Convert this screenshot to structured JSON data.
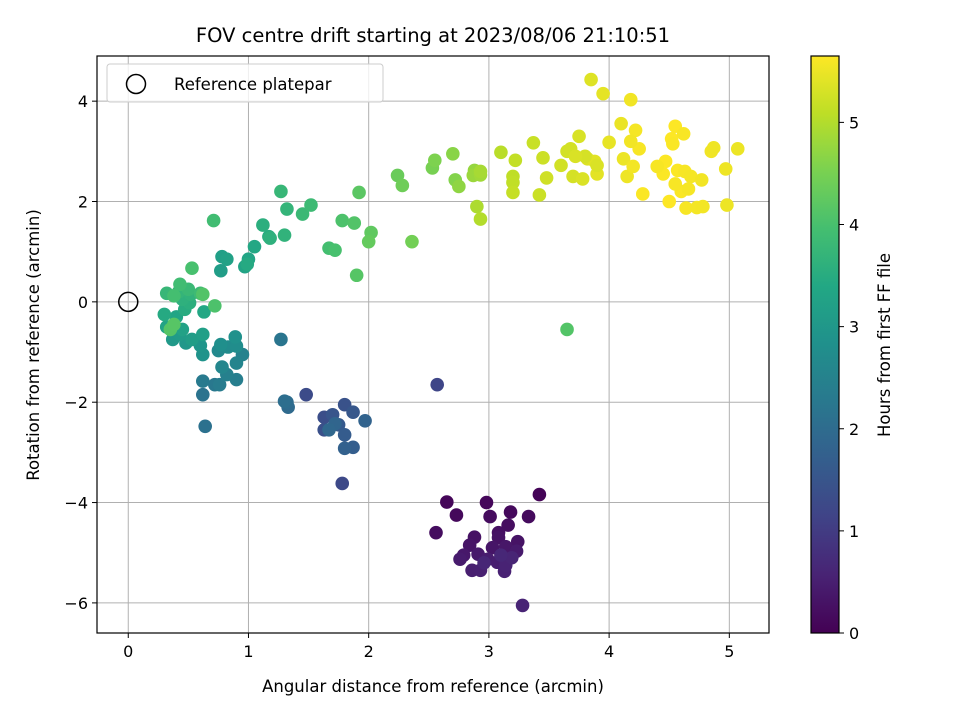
{
  "chart_data": {
    "type": "scatter",
    "title": "FOV centre drift starting at 2023/08/06 21:10:51",
    "xlabel": "Angular distance from reference (arcmin)",
    "ylabel": "Rotation from reference (arcmin)",
    "xlim": [
      -0.26,
      5.33
    ],
    "ylim": [
      -6.6,
      4.9
    ],
    "xticks": [
      0,
      1,
      2,
      3,
      4,
      5
    ],
    "yticks": [
      -6,
      -4,
      -2,
      0,
      2,
      4
    ],
    "xtick_labels": [
      "0",
      "1",
      "2",
      "3",
      "4",
      "5"
    ],
    "ytick_labels": [
      "−6",
      "−4",
      "−2",
      "0",
      "2",
      "4"
    ],
    "grid": true,
    "legend": {
      "placement": "upper-left",
      "entries": [
        "Reference platepar"
      ]
    },
    "reference_point": {
      "x": 0,
      "y": 0
    },
    "colorbar": {
      "label": "Hours from first FF file",
      "colormap": "viridis",
      "range": [
        0,
        5.65
      ],
      "ticks": [
        0,
        1,
        2,
        3,
        4,
        5
      ],
      "tick_labels": [
        "0",
        "1",
        "2",
        "3",
        "4",
        "5"
      ]
    },
    "points": [
      [
        3.42,
        -3.84,
        0.05
      ],
      [
        2.65,
        -3.99,
        0.08
      ],
      [
        2.98,
        -4.0,
        0.1
      ],
      [
        2.73,
        -4.25,
        0.12
      ],
      [
        3.18,
        -4.19,
        0.14
      ],
      [
        3.33,
        -4.28,
        0.16
      ],
      [
        3.01,
        -4.28,
        0.18
      ],
      [
        2.56,
        -4.6,
        0.2
      ],
      [
        3.16,
        -4.45,
        0.22
      ],
      [
        3.08,
        -4.6,
        0.24
      ],
      [
        2.88,
        -4.69,
        0.26
      ],
      [
        3.08,
        -4.7,
        0.28
      ],
      [
        3.24,
        -4.78,
        0.3
      ],
      [
        2.84,
        -4.85,
        0.32
      ],
      [
        3.03,
        -4.9,
        0.34
      ],
      [
        3.14,
        -4.88,
        0.36
      ],
      [
        2.79,
        -5.05,
        0.38
      ],
      [
        2.91,
        -5.03,
        0.4
      ],
      [
        3.23,
        -4.97,
        0.42
      ],
      [
        2.76,
        -5.13,
        0.44
      ],
      [
        2.99,
        -5.13,
        0.46
      ],
      [
        3.07,
        -5.19,
        0.48
      ],
      [
        2.86,
        -5.35,
        0.5
      ],
      [
        2.93,
        -5.35,
        0.52
      ],
      [
        3.13,
        -5.37,
        0.54
      ],
      [
        3.14,
        -5.25,
        0.56
      ],
      [
        3.28,
        -6.05,
        0.58
      ],
      [
        3.19,
        -5.1,
        0.6
      ],
      [
        2.96,
        -5.2,
        0.62
      ],
      [
        3.1,
        -5.05,
        0.64
      ],
      [
        2.57,
        -1.65,
        1.2
      ],
      [
        1.78,
        -3.62,
        1.25
      ],
      [
        1.48,
        -1.85,
        1.3
      ],
      [
        1.63,
        -2.3,
        1.35
      ],
      [
        1.63,
        -2.55,
        1.4
      ],
      [
        1.8,
        -2.05,
        1.45
      ],
      [
        1.7,
        -2.25,
        1.5
      ],
      [
        1.87,
        -2.2,
        1.55
      ],
      [
        1.75,
        -2.45,
        1.6
      ],
      [
        1.8,
        -2.65,
        1.65
      ],
      [
        1.87,
        -2.9,
        1.7
      ],
      [
        1.8,
        -2.92,
        1.75
      ],
      [
        1.97,
        -2.37,
        1.8
      ],
      [
        1.72,
        -2.43,
        1.85
      ],
      [
        1.67,
        -2.55,
        1.9
      ],
      [
        1.33,
        -2.1,
        1.95
      ],
      [
        1.32,
        -2.0,
        2.0
      ],
      [
        1.3,
        -1.98,
        2.05
      ],
      [
        0.64,
        -2.48,
        2.1
      ],
      [
        0.62,
        -1.85,
        2.15
      ],
      [
        1.27,
        -0.75,
        2.2
      ],
      [
        0.72,
        -1.65,
        2.25
      ],
      [
        0.62,
        -1.58,
        2.3
      ],
      [
        0.76,
        -1.65,
        2.35
      ],
      [
        0.9,
        -1.55,
        2.4
      ],
      [
        0.82,
        -1.45,
        2.45
      ],
      [
        0.95,
        -1.05,
        2.5
      ],
      [
        0.9,
        -1.22,
        2.55
      ],
      [
        0.78,
        -1.3,
        2.6
      ],
      [
        0.75,
        -0.97,
        2.65
      ],
      [
        0.83,
        -0.9,
        2.7
      ],
      [
        0.9,
        -0.88,
        2.75
      ],
      [
        0.77,
        -0.85,
        2.8
      ],
      [
        0.89,
        -0.7,
        2.85
      ],
      [
        0.62,
        -1.05,
        2.9
      ],
      [
        0.6,
        -0.87,
        2.95
      ],
      [
        0.48,
        -0.82,
        3.0
      ],
      [
        0.37,
        -0.75,
        3.05
      ],
      [
        0.43,
        -0.65,
        3.1
      ],
      [
        0.53,
        -0.75,
        3.15
      ],
      [
        0.62,
        -0.65,
        3.2
      ],
      [
        0.45,
        -0.55,
        3.25
      ],
      [
        0.32,
        -0.5,
        3.3
      ],
      [
        0.4,
        -0.3,
        3.35
      ],
      [
        0.63,
        -0.2,
        3.4
      ],
      [
        0.3,
        -0.25,
        3.45
      ],
      [
        0.47,
        -0.15,
        3.5
      ],
      [
        0.51,
        -0.02,
        3.55
      ],
      [
        0.45,
        0.05,
        3.6
      ],
      [
        0.52,
        0.15,
        3.65
      ],
      [
        0.42,
        0.2,
        3.7
      ],
      [
        0.32,
        0.17,
        3.75
      ],
      [
        0.5,
        0.25,
        3.8
      ],
      [
        0.6,
        0.17,
        3.85
      ],
      [
        0.43,
        0.35,
        3.9
      ],
      [
        0.38,
        0.12,
        3.95
      ],
      [
        0.53,
        0.67,
        4.0
      ],
      [
        0.72,
        -0.08,
        4.05
      ],
      [
        0.62,
        0.15,
        4.1
      ],
      [
        3.65,
        -0.55,
        4.12
      ],
      [
        0.35,
        -0.55,
        4.14
      ],
      [
        0.38,
        -0.45,
        4.16
      ]
    ]
  },
  "upper_arc_points": [
    [
      0.77,
      0.62,
      3.15
    ],
    [
      0.78,
      0.9,
      3.2
    ],
    [
      0.82,
      0.85,
      3.25
    ],
    [
      0.97,
      0.7,
      3.3
    ],
    [
      1.0,
      0.85,
      3.35
    ],
    [
      1.05,
      1.1,
      3.4
    ],
    [
      0.99,
      0.75,
      3.45
    ],
    [
      1.17,
      1.3,
      3.5
    ],
    [
      1.12,
      1.53,
      3.55
    ],
    [
      1.18,
      1.27,
      3.6
    ],
    [
      1.3,
      1.33,
      3.65
    ],
    [
      1.32,
      1.85,
      3.7
    ],
    [
      1.27,
      2.2,
      3.75
    ],
    [
      1.45,
      1.75,
      3.8
    ],
    [
      1.52,
      1.93,
      3.85
    ],
    [
      0.71,
      1.62,
      3.9
    ],
    [
      1.67,
      1.07,
      3.95
    ],
    [
      1.72,
      1.03,
      4.0
    ],
    [
      1.78,
      1.62,
      4.05
    ],
    [
      1.88,
      1.57,
      4.1
    ],
    [
      1.9,
      0.53,
      4.15
    ],
    [
      1.92,
      2.18,
      4.2
    ],
    [
      2.02,
      1.38,
      4.25
    ],
    [
      2.0,
      1.2,
      4.3
    ],
    [
      2.24,
      2.52,
      4.35
    ],
    [
      2.28,
      2.32,
      4.4
    ],
    [
      2.36,
      1.2,
      4.45
    ],
    [
      2.53,
      2.67,
      4.5
    ],
    [
      2.55,
      2.82,
      4.55
    ],
    [
      2.72,
      2.43,
      4.6
    ],
    [
      2.7,
      2.95,
      4.65
    ],
    [
      2.75,
      2.3,
      4.7
    ],
    [
      2.88,
      2.62,
      4.75
    ],
    [
      2.87,
      2.52,
      4.8
    ],
    [
      2.93,
      2.53,
      4.85
    ],
    [
      2.93,
      2.6,
      4.9
    ],
    [
      2.9,
      1.9,
      4.95
    ],
    [
      2.93,
      1.65,
      5.0
    ],
    [
      3.1,
      2.98,
      5.05
    ],
    [
      3.2,
      2.5,
      5.1
    ],
    [
      3.2,
      2.38,
      5.12
    ],
    [
      3.22,
      2.82,
      5.14
    ],
    [
      3.2,
      2.18,
      5.16
    ],
    [
      3.37,
      3.17,
      5.18
    ],
    [
      3.42,
      2.13,
      5.2
    ],
    [
      3.45,
      2.87,
      5.22
    ],
    [
      3.48,
      2.47,
      5.24
    ],
    [
      3.6,
      2.72,
      5.26
    ],
    [
      3.65,
      3.0,
      5.28
    ],
    [
      3.7,
      2.5,
      5.3
    ],
    [
      3.75,
      3.3,
      5.32
    ],
    [
      3.78,
      2.45,
      5.34
    ],
    [
      3.82,
      2.85,
      5.36
    ],
    [
      3.85,
      4.43,
      5.38
    ],
    [
      3.88,
      2.8,
      5.4
    ],
    [
      3.9,
      2.55,
      5.42
    ],
    [
      3.95,
      4.15,
      5.44
    ],
    [
      4.0,
      3.18,
      5.46
    ],
    [
      4.1,
      3.55,
      5.48
    ],
    [
      4.12,
      2.85,
      5.5
    ],
    [
      4.15,
      2.5,
      5.52
    ],
    [
      4.18,
      4.03,
      5.54
    ],
    [
      4.2,
      2.7,
      5.56
    ],
    [
      4.22,
      3.42,
      5.58
    ],
    [
      4.25,
      3.05,
      5.6
    ],
    [
      4.28,
      2.15,
      5.62
    ],
    [
      4.45,
      2.55,
      5.63
    ],
    [
      4.47,
      2.8,
      5.64
    ],
    [
      4.5,
      2.0,
      5.65
    ],
    [
      4.52,
      3.25,
      5.65
    ],
    [
      4.55,
      3.5,
      5.64
    ],
    [
      4.57,
      2.62,
      5.63
    ],
    [
      4.6,
      2.2,
      5.62
    ],
    [
      4.62,
      3.35,
      5.61
    ],
    [
      4.63,
      2.6,
      5.6
    ],
    [
      4.64,
      1.87,
      5.6
    ],
    [
      4.66,
      2.25,
      5.59
    ],
    [
      4.68,
      2.5,
      5.58
    ],
    [
      4.73,
      1.88,
      5.57
    ],
    [
      4.78,
      1.9,
      5.56
    ],
    [
      4.77,
      2.43,
      5.55
    ],
    [
      4.85,
      3.0,
      5.54
    ],
    [
      4.87,
      3.07,
      5.53
    ],
    [
      4.97,
      2.65,
      5.52
    ],
    [
      4.98,
      1.93,
      5.51
    ],
    [
      5.07,
      3.05,
      5.5
    ],
    [
      3.9,
      2.72,
      5.34
    ],
    [
      3.8,
      2.9,
      5.3
    ],
    [
      3.68,
      3.05,
      5.28
    ],
    [
      4.53,
      3.15,
      5.62
    ],
    [
      4.4,
      2.7,
      5.6
    ],
    [
      4.55,
      2.35,
      5.6
    ],
    [
      4.18,
      3.2,
      5.55
    ],
    [
      3.72,
      2.9,
      5.33
    ]
  ]
}
